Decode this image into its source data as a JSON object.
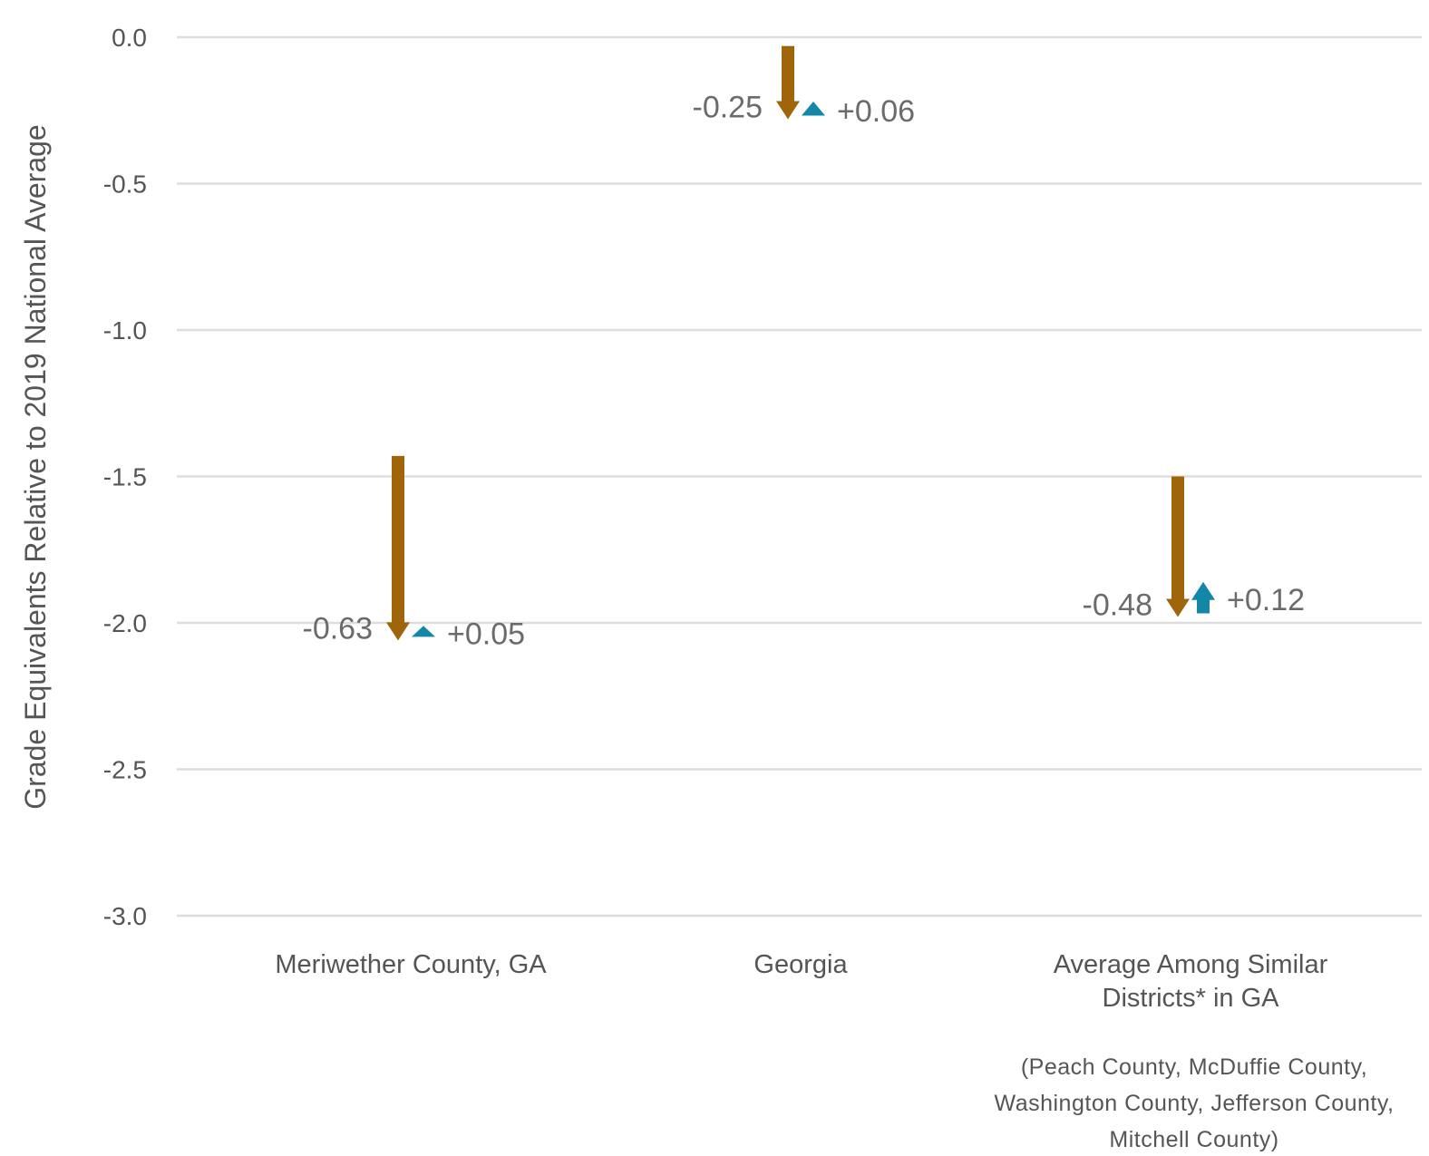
{
  "chart_data": {
    "type": "arrow",
    "ylabel": "Grade Equivalents Relative to 2019 National Average",
    "ylim": [
      -3.0,
      0.0
    ],
    "yticks": [
      "0.0",
      "-0.5",
      "-1.0",
      "-1.5",
      "-2.0",
      "-2.5",
      "-3.0"
    ],
    "grid": true,
    "categories": [
      {
        "label_lines": [
          "Meriwether County, GA"
        ],
        "note_lines": [],
        "start": -1.43,
        "decline": -0.63,
        "decline_label": "-0.63",
        "recovery": 0.05,
        "recovery_label": "+0.05"
      },
      {
        "label_lines": [
          "Georgia"
        ],
        "note_lines": [],
        "start": -0.03,
        "decline": -0.25,
        "decline_label": "-0.25",
        "recovery": 0.06,
        "recovery_label": "+0.06"
      },
      {
        "label_lines": [
          "Average Among Similar",
          "Districts* in GA"
        ],
        "note_lines": [
          "(Peach County, McDuffie County,",
          "Washington County, Jefferson County,",
          "Mitchell County)"
        ],
        "start": -1.5,
        "decline": -0.48,
        "decline_label": "-0.48",
        "recovery": 0.12,
        "recovery_label": "+0.12"
      }
    ],
    "colors": {
      "decline": "#A0640B",
      "recovery": "#1487A8",
      "grid": "#DDDDDD",
      "text": "#555555",
      "value_text": "#6B6B6B"
    }
  }
}
